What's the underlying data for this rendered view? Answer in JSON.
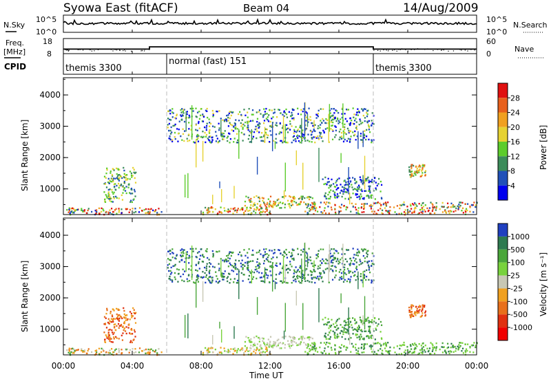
{
  "header": {
    "title": "Syowa East (fitACF)",
    "beam": "Beam 04",
    "date": "14/Aug/2009"
  },
  "nsky_panel": {
    "label": "N.Sky",
    "tick_top": "10^5",
    "tick_bottom": "10^0",
    "right_label": "N.Search",
    "right_tick_top": "10^5",
    "right_tick_bottom": "10^0"
  },
  "freq_panel": {
    "label_line1": "Freq.",
    "label_line2": "[MHz]",
    "tick_top": "18",
    "tick_bottom": "8",
    "right_label": "Nave",
    "right_tick_top": "60",
    "right_tick_bottom": "0"
  },
  "cpid_panel": {
    "label": "CPID",
    "segments": [
      {
        "name": "themis 3300",
        "start": "00:00",
        "end": "06:00"
      },
      {
        "name": "normal (fast) 151",
        "start": "06:00",
        "end": "18:00"
      },
      {
        "name": "themis 3300",
        "start": "18:00",
        "end": "24:00"
      }
    ]
  },
  "power_panel": {
    "ylabel": "Slant Range [km]",
    "yticks": [
      "1000",
      "2000",
      "3000",
      "4000"
    ],
    "colorbar_label": "Power [dB]",
    "colorbar_ticks": [
      "4",
      "8",
      "12",
      "16",
      "20",
      "24",
      "28"
    ],
    "colors": [
      "#0000ee",
      "#2050b8",
      "#3c8c5a",
      "#5ccc2c",
      "#e6d232",
      "#f0a020",
      "#e8601c",
      "#e01010"
    ]
  },
  "velocity_panel": {
    "ylabel": "Slant Range [km]",
    "yticks": [
      "1000",
      "2000",
      "3000",
      "4000"
    ],
    "colorbar_label": "Velocity [m s⁻¹]",
    "colorbar_ticks": [
      "1000",
      "500",
      "100",
      "25",
      "-25",
      "-100",
      "-500",
      "-1000"
    ],
    "colors": [
      "#2040c0",
      "#2e7a50",
      "#4aa63a",
      "#78d23c",
      "#c8c8b4",
      "#f0a020",
      "#e8701c",
      "#e03010",
      "#f00000"
    ]
  },
  "xaxis": {
    "label": "Time UT",
    "ticks": [
      "00:00",
      "04:00",
      "08:00",
      "12:00",
      "16:00",
      "20:00",
      "00:00"
    ]
  },
  "chart_data": {
    "type": "heatmap",
    "title": "Syowa East (fitACF)",
    "xlabel": "Time UT",
    "ylabel": "Slant Range [km]",
    "xlim": [
      "00:00",
      "24:00"
    ],
    "ylim": [
      180,
      4550
    ],
    "freq_mhz_step": [
      {
        "start": "00:00",
        "end": "05:00",
        "freq": 11
      },
      {
        "start": "05:00",
        "end": "18:00",
        "freq": 12.5
      },
      {
        "start": "18:00",
        "end": "24:00",
        "freq": 11
      }
    ],
    "scatter_regions": [
      {
        "time_start": "00:10",
        "time_end": "05:40",
        "range_min": 200,
        "range_max": 420,
        "power": "4-28",
        "velocity": "-500 to 100"
      },
      {
        "time_start": "02:20",
        "time_end": "04:10",
        "range_min": 600,
        "range_max": 1700,
        "power": "8-16",
        "velocity": "-500 to -100"
      },
      {
        "time_start": "08:00",
        "time_end": "12:00",
        "range_min": 200,
        "range_max": 450,
        "power": "12-28",
        "velocity": "-100 to 25"
      },
      {
        "time_start": "10:30",
        "time_end": "14:30",
        "range_min": 400,
        "range_max": 800,
        "power": "12-24",
        "velocity": "-25 to 25"
      },
      {
        "time_start": "14:00",
        "time_end": "24:00",
        "range_min": 200,
        "range_max": 600,
        "power": "8-28",
        "velocity": "25 to 500"
      },
      {
        "time_start": "15:00",
        "time_end": "18:30",
        "range_min": 700,
        "range_max": 1400,
        "power": "4-12",
        "velocity": "100 to 500"
      },
      {
        "time_start": "20:00",
        "time_end": "21:00",
        "range_min": 1400,
        "range_max": 1800,
        "power": "12-24",
        "velocity": "-500 to -100"
      },
      {
        "time_start": "06:00",
        "time_end": "18:00",
        "range_min": 2500,
        "range_max": 3600,
        "power": "4-16",
        "velocity": "100 to 1000"
      }
    ]
  }
}
